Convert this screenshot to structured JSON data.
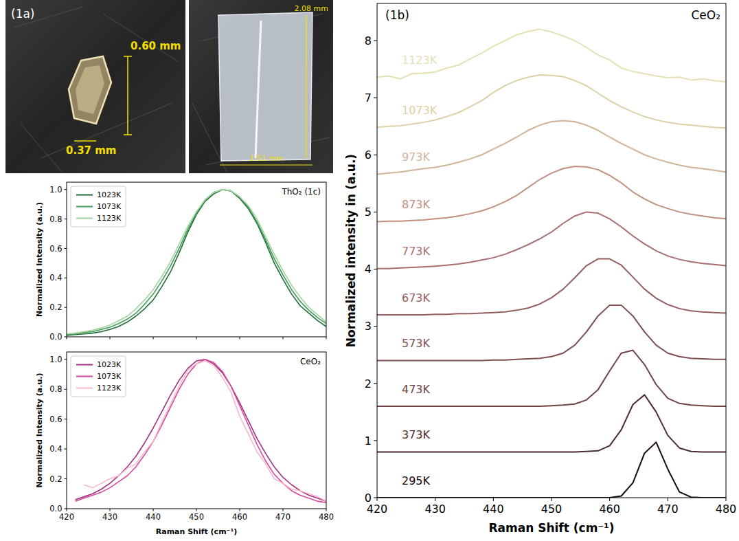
{
  "panel_label": "(1a)",
  "photos": [
    {
      "labels": [
        "0.60 mm",
        "0.37 mm"
      ]
    },
    {
      "labels": [
        "2.08 mm",
        "1.51 mm"
      ]
    }
  ],
  "chart_data": [
    {
      "type": "line",
      "title": "CeO₂",
      "panel_label": "(1b)",
      "x_label": "Raman Shift (cm⁻¹)",
      "y_label": "Normalized intensity in (a.u.)",
      "xlim": [
        420,
        480
      ],
      "xticks": [
        420,
        430,
        440,
        450,
        460,
        470,
        480
      ],
      "ylim": [
        0,
        8.65
      ],
      "yticks": [
        0,
        1,
        2,
        3,
        4,
        5,
        6,
        7,
        8
      ],
      "x": [
        420,
        422,
        424,
        426,
        428,
        430,
        432,
        434,
        436,
        438,
        440,
        442,
        444,
        446,
        448,
        450,
        452,
        454,
        456,
        458,
        460,
        462,
        464,
        466,
        468,
        470,
        472,
        474,
        476,
        478,
        480
      ],
      "series": [
        {
          "name": "295K",
          "color": "#1a0606",
          "values": [
            0,
            0,
            0,
            0,
            0,
            0,
            0,
            0,
            0,
            0,
            0,
            0,
            0,
            0,
            0,
            0,
            0,
            0,
            0,
            0,
            0,
            0.03,
            0.26,
            0.78,
            0.97,
            0.5,
            0.1,
            0.01,
            0,
            0,
            0
          ]
        },
        {
          "name": "373K",
          "color": "#4b2d2d",
          "values": [
            0.8,
            0.8,
            0.8,
            0.8,
            0.8,
            0.8,
            0.8,
            0.8,
            0.8,
            0.8,
            0.8,
            0.8,
            0.8,
            0.8,
            0.8,
            0.8,
            0.8,
            0.8,
            0.81,
            0.82,
            0.91,
            1.19,
            1.63,
            1.8,
            1.5,
            1.09,
            0.87,
            0.81,
            0.8,
            0.8,
            0.8
          ]
        },
        {
          "name": "473K",
          "color": "#6e4444",
          "values": [
            1.6,
            1.6,
            1.6,
            1.6,
            1.6,
            1.6,
            1.6,
            1.6,
            1.6,
            1.6,
            1.6,
            1.6,
            1.6,
            1.6,
            1.6,
            1.61,
            1.62,
            1.64,
            1.71,
            1.89,
            2.22,
            2.53,
            2.58,
            2.33,
            1.98,
            1.74,
            1.65,
            1.62,
            1.61,
            1.6,
            1.6
          ]
        },
        {
          "name": "573K",
          "color": "#7f4f4f",
          "values": [
            2.4,
            2.4,
            2.4,
            2.4,
            2.4,
            2.4,
            2.4,
            2.4,
            2.4,
            2.4,
            2.41,
            2.41,
            2.42,
            2.43,
            2.44,
            2.47,
            2.53,
            2.67,
            2.9,
            3.18,
            3.37,
            3.37,
            3.18,
            2.9,
            2.67,
            2.53,
            2.47,
            2.44,
            2.43,
            2.42,
            2.42
          ]
        },
        {
          "name": "673K",
          "color": "#955e5e",
          "values": [
            3.2,
            3.2,
            3.2,
            3.2,
            3.2,
            3.21,
            3.21,
            3.22,
            3.22,
            3.23,
            3.24,
            3.25,
            3.28,
            3.32,
            3.39,
            3.5,
            3.65,
            3.85,
            4.06,
            4.18,
            4.18,
            4.07,
            3.86,
            3.65,
            3.49,
            3.38,
            3.31,
            3.27,
            3.25,
            3.24,
            3.23
          ]
        },
        {
          "name": "773K",
          "color": "#a86e6e",
          "values": [
            4.01,
            4.01,
            4.02,
            4.03,
            4.04,
            4.05,
            4.07,
            4.09,
            4.12,
            4.16,
            4.2,
            4.26,
            4.34,
            4.43,
            4.53,
            4.65,
            4.8,
            4.93,
            5.0,
            4.98,
            4.88,
            4.74,
            4.58,
            4.44,
            4.32,
            4.23,
            4.17,
            4.13,
            4.1,
            4.08,
            4.06
          ]
        },
        {
          "name": "873K",
          "color": "#c09080",
          "values": [
            4.83,
            4.84,
            4.84,
            4.85,
            4.86,
            4.88,
            4.9,
            4.93,
            4.97,
            5.02,
            5.09,
            5.18,
            5.29,
            5.43,
            5.57,
            5.68,
            5.76,
            5.8,
            5.79,
            5.74,
            5.64,
            5.51,
            5.35,
            5.23,
            5.13,
            5.06,
            5.0,
            4.96,
            4.93,
            4.9,
            4.88
          ]
        },
        {
          "name": "973K",
          "color": "#d0b498",
          "values": [
            5.66,
            5.68,
            5.7,
            5.73,
            5.76,
            5.78,
            5.82,
            5.87,
            5.93,
            6.0,
            6.1,
            6.2,
            6.31,
            6.43,
            6.52,
            6.58,
            6.6,
            6.58,
            6.52,
            6.43,
            6.31,
            6.2,
            6.1,
            6.0,
            5.93,
            5.87,
            5.82,
            5.78,
            5.76,
            5.73,
            5.7
          ]
        },
        {
          "name": "1073K",
          "color": "#ddd0a6",
          "values": [
            6.48,
            6.5,
            6.51,
            6.54,
            6.57,
            6.61,
            6.67,
            6.74,
            6.84,
            6.95,
            7.09,
            7.21,
            7.3,
            7.36,
            7.4,
            7.39,
            7.37,
            7.3,
            7.21,
            7.08,
            6.95,
            6.84,
            6.75,
            6.67,
            6.61,
            6.57,
            6.54,
            6.52,
            6.5,
            6.48,
            6.47
          ]
        },
        {
          "name": "1123K",
          "color": "#e6e0b4",
          "values": [
            7.36,
            7.38,
            7.33,
            7.42,
            7.43,
            7.45,
            7.52,
            7.57,
            7.68,
            7.78,
            7.9,
            8.0,
            8.1,
            8.16,
            8.2,
            8.15,
            8.08,
            8.0,
            7.88,
            7.75,
            7.66,
            7.52,
            7.46,
            7.42,
            7.38,
            7.35,
            7.36,
            7.31,
            7.33,
            7.3,
            7.28
          ]
        }
      ]
    },
    {
      "type": "line",
      "title": "ThO₂ (1c)",
      "y_label": "Normalized Intensity (a.u.)",
      "legend": "upper left",
      "tick_labels": "y",
      "xlim": [
        420,
        480
      ],
      "xticks": [
        420,
        430,
        440,
        450,
        460,
        470,
        480
      ],
      "ylim": [
        0,
        1.05
      ],
      "yticks": [
        {
          "value": 0,
          "label": "0.0"
        },
        {
          "value": 0.2,
          "label": "0.2"
        },
        {
          "value": 0.4,
          "label": "0.4"
        },
        {
          "value": 0.6,
          "label": "0.6"
        },
        {
          "value": 0.8,
          "label": "0.8"
        },
        {
          "value": 1,
          "label": "1.0"
        }
      ],
      "x": [
        420,
        422,
        424,
        426,
        428,
        430,
        432,
        434,
        436,
        438,
        440,
        442,
        444,
        446,
        448,
        450,
        452,
        454,
        456,
        458,
        460,
        462,
        464,
        466,
        468,
        470,
        472,
        474,
        476,
        478,
        480
      ],
      "series": [
        {
          "name": "1023K",
          "color": "#1e6b34",
          "values": [
            0.01,
            0.015,
            0.02,
            0.025,
            0.035,
            0.05,
            0.07,
            0.1,
            0.14,
            0.19,
            0.25,
            0.34,
            0.44,
            0.57,
            0.71,
            0.83,
            0.92,
            0.97,
            1.0,
            0.99,
            0.94,
            0.87,
            0.77,
            0.64,
            0.5,
            0.39,
            0.29,
            0.21,
            0.16,
            0.11,
            0.07
          ]
        },
        {
          "name": "1073K",
          "color": "#3e9d5c",
          "values": [
            0.015,
            0.02,
            0.03,
            0.035,
            0.05,
            0.065,
            0.09,
            0.12,
            0.16,
            0.22,
            0.29,
            0.38,
            0.48,
            0.6,
            0.73,
            0.84,
            0.93,
            0.98,
            1.0,
            0.99,
            0.95,
            0.88,
            0.78,
            0.66,
            0.53,
            0.42,
            0.32,
            0.24,
            0.18,
            0.13,
            0.09
          ]
        },
        {
          "name": "1123K",
          "color": "#a3d39c",
          "values": [
            0.02,
            0.025,
            0.035,
            0.045,
            0.06,
            0.08,
            0.11,
            0.14,
            0.19,
            0.25,
            0.32,
            0.41,
            0.51,
            0.63,
            0.75,
            0.85,
            0.93,
            0.98,
            1.0,
            0.99,
            0.95,
            0.89,
            0.8,
            0.68,
            0.56,
            0.45,
            0.35,
            0.27,
            0.2,
            0.15,
            0.1
          ]
        }
      ]
    },
    {
      "type": "line",
      "title": "CeO₂",
      "x_label": "Raman Shift (cm⁻¹)",
      "y_label": "Normalized Intensity (a.u.)",
      "legend": "upper left",
      "xlim": [
        420,
        480
      ],
      "xticks": [
        420,
        430,
        440,
        450,
        460,
        470,
        480
      ],
      "ylim": [
        0,
        1.05
      ],
      "yticks": [
        {
          "value": 0,
          "label": "0.0"
        },
        {
          "value": 0.2,
          "label": "0.2"
        },
        {
          "value": 0.4,
          "label": "0.4"
        },
        {
          "value": 0.6,
          "label": "0.6"
        },
        {
          "value": 0.8,
          "label": "0.8"
        },
        {
          "value": 1,
          "label": "1.0"
        }
      ],
      "x": [
        422,
        424,
        426,
        428,
        430,
        432,
        434,
        436,
        438,
        440,
        442,
        444,
        446,
        448,
        450,
        452,
        454,
        456,
        458,
        460,
        462,
        464,
        466,
        468,
        470,
        472,
        474,
        476,
        478,
        480
      ],
      "series": [
        {
          "name": "1023K",
          "color": "#a1307f",
          "values": [
            0.06,
            0.08,
            0.1,
            0.13,
            0.17,
            0.22,
            0.28,
            0.35,
            0.44,
            0.54,
            0.65,
            0.76,
            0.86,
            0.94,
            0.99,
            1.0,
            0.97,
            0.91,
            0.82,
            0.71,
            0.59,
            0.47,
            0.37,
            0.28,
            0.21,
            0.16,
            0.12,
            0.09,
            0.07,
            0.05
          ]
        },
        {
          "name": "1073K",
          "color": "#d4499f",
          "values": [
            0.05,
            0.07,
            0.09,
            0.11,
            0.14,
            0.18,
            0.22,
            0.28,
            0.36,
            0.45,
            0.56,
            0.68,
            0.8,
            0.9,
            0.97,
            1.0,
            0.98,
            0.92,
            0.82,
            0.69,
            0.56,
            0.43,
            0.32,
            0.23,
            0.17,
            0.12,
            0.09,
            0.07,
            0.05,
            0.04
          ]
        },
        {
          "name": "1123K",
          "color": "#f6b8cb",
          "values": [
            null,
            0.16,
            0.14,
            0.17,
            0.2,
            0.22,
            0.27,
            0.3,
            0.38,
            0.45,
            0.58,
            0.7,
            0.82,
            0.93,
            0.97,
            0.99,
            0.96,
            0.88,
            0.78,
            0.62,
            0.5,
            0.38,
            0.3,
            0.2,
            0.17,
            0.13,
            0.12,
            0.1,
            0.08,
            0.05
          ]
        }
      ]
    }
  ]
}
